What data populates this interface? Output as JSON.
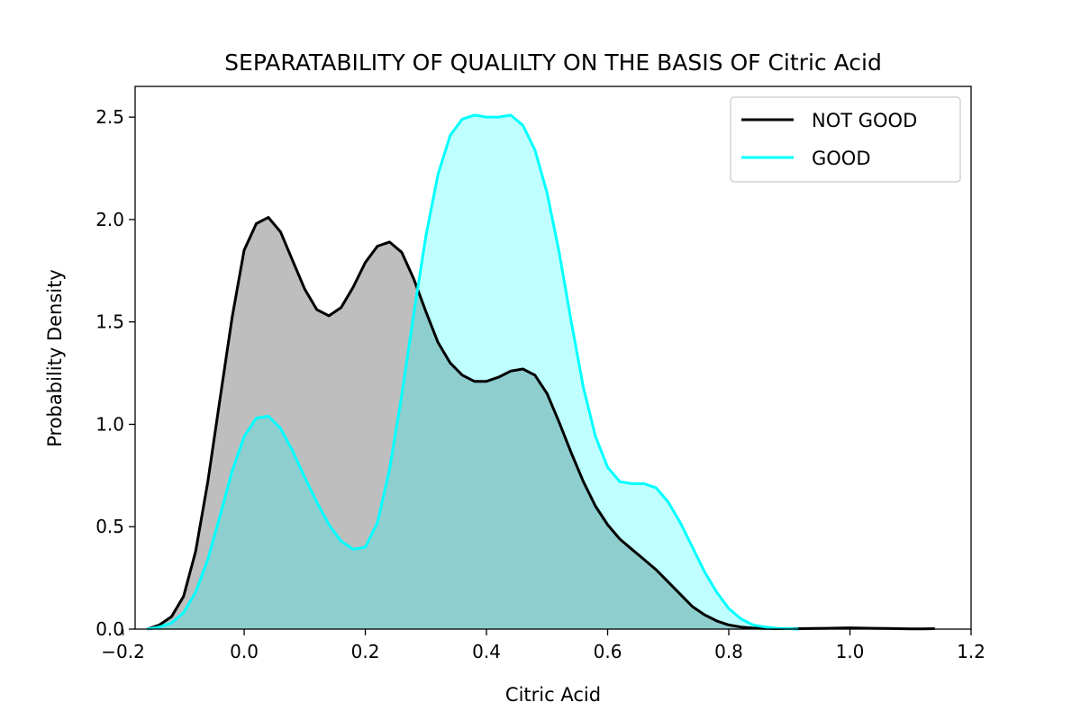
{
  "chart_data": {
    "type": "area",
    "title": "SEPARATABILITY OF QUALILTY ON THE BASIS OF Citric Acid",
    "xlabel": "Citric Acid",
    "ylabel": "Probability Density",
    "xlim": [
      -0.18,
      1.2
    ],
    "ylim": [
      0,
      2.65
    ],
    "xticks": [
      -0.2,
      0.0,
      0.2,
      0.4,
      0.6,
      0.8,
      1.0,
      1.2
    ],
    "xtick_labels": [
      "−0.2",
      "0.0",
      "0.2",
      "0.4",
      "0.6",
      "0.8",
      "1.0",
      "1.2"
    ],
    "yticks": [
      0.0,
      0.5,
      1.0,
      1.5,
      2.0,
      2.5
    ],
    "ytick_labels": [
      "0.0",
      "0.5",
      "1.0",
      "1.5",
      "2.0",
      "2.5"
    ],
    "grid": false,
    "legend": {
      "position": "top-right"
    },
    "series": [
      {
        "name": "NOT GOOD",
        "color": "#000000",
        "fill": "#bebebe",
        "x": [
          -0.16,
          -0.14,
          -0.12,
          -0.1,
          -0.08,
          -0.06,
          -0.04,
          -0.02,
          0.0,
          0.02,
          0.04,
          0.06,
          0.08,
          0.1,
          0.12,
          0.14,
          0.16,
          0.18,
          0.2,
          0.22,
          0.24,
          0.26,
          0.28,
          0.3,
          0.32,
          0.34,
          0.36,
          0.38,
          0.4,
          0.42,
          0.44,
          0.46,
          0.48,
          0.5,
          0.52,
          0.54,
          0.56,
          0.58,
          0.6,
          0.62,
          0.64,
          0.66,
          0.68,
          0.7,
          0.72,
          0.74,
          0.76,
          0.78,
          0.8,
          0.82,
          0.84,
          0.86,
          0.88,
          0.9,
          0.92,
          0.94,
          0.96,
          0.98,
          1.0,
          1.02,
          1.04,
          1.06,
          1.08,
          1.1,
          1.12,
          1.14
        ],
        "y": [
          0.0,
          0.02,
          0.06,
          0.16,
          0.38,
          0.72,
          1.12,
          1.52,
          1.85,
          1.98,
          2.01,
          1.94,
          1.8,
          1.66,
          1.56,
          1.53,
          1.57,
          1.67,
          1.79,
          1.87,
          1.89,
          1.84,
          1.71,
          1.55,
          1.4,
          1.3,
          1.24,
          1.21,
          1.21,
          1.23,
          1.26,
          1.27,
          1.24,
          1.15,
          1.01,
          0.86,
          0.72,
          0.6,
          0.51,
          0.44,
          0.39,
          0.34,
          0.29,
          0.23,
          0.17,
          0.11,
          0.07,
          0.04,
          0.02,
          0.01,
          0.005,
          0.003,
          0.002,
          0.002,
          0.002,
          0.003,
          0.004,
          0.005,
          0.006,
          0.005,
          0.004,
          0.003,
          0.002,
          0.001,
          0.001,
          0.002
        ]
      },
      {
        "name": "GOOD",
        "color": "#00ffff",
        "fill": "rgba(0,255,255,0.25)",
        "x": [
          -0.16,
          -0.14,
          -0.12,
          -0.1,
          -0.08,
          -0.06,
          -0.04,
          -0.02,
          0.0,
          0.02,
          0.04,
          0.06,
          0.08,
          0.1,
          0.12,
          0.14,
          0.16,
          0.18,
          0.2,
          0.22,
          0.24,
          0.26,
          0.28,
          0.3,
          0.32,
          0.34,
          0.36,
          0.38,
          0.4,
          0.42,
          0.44,
          0.46,
          0.48,
          0.5,
          0.52,
          0.54,
          0.56,
          0.58,
          0.6,
          0.62,
          0.64,
          0.66,
          0.68,
          0.7,
          0.72,
          0.74,
          0.76,
          0.78,
          0.8,
          0.82,
          0.84,
          0.86,
          0.88,
          0.9,
          0.915
        ],
        "y": [
          0.0,
          0.01,
          0.03,
          0.08,
          0.18,
          0.34,
          0.55,
          0.77,
          0.94,
          1.03,
          1.04,
          0.98,
          0.87,
          0.74,
          0.62,
          0.51,
          0.43,
          0.39,
          0.4,
          0.52,
          0.78,
          1.14,
          1.54,
          1.92,
          2.22,
          2.41,
          2.49,
          2.51,
          2.5,
          2.5,
          2.51,
          2.46,
          2.34,
          2.13,
          1.84,
          1.5,
          1.18,
          0.94,
          0.79,
          0.72,
          0.71,
          0.71,
          0.69,
          0.62,
          0.52,
          0.4,
          0.28,
          0.18,
          0.1,
          0.05,
          0.02,
          0.01,
          0.004,
          0.002,
          0.0
        ]
      }
    ]
  }
}
